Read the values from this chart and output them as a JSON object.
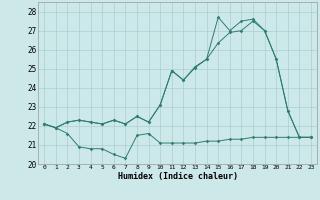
{
  "xlabel": "Humidex (Indice chaleur)",
  "xlim": [
    -0.5,
    23.5
  ],
  "ylim": [
    20,
    28.5
  ],
  "yticks": [
    20,
    21,
    22,
    23,
    24,
    25,
    26,
    27,
    28
  ],
  "xticks": [
    0,
    1,
    2,
    3,
    4,
    5,
    6,
    7,
    8,
    9,
    10,
    11,
    12,
    13,
    14,
    15,
    16,
    17,
    18,
    19,
    20,
    21,
    22,
    23
  ],
  "background_color": "#cde8e8",
  "grid_color": "#aacfcf",
  "line_color": "#2e7d6e",
  "line1_y": [
    22.1,
    21.9,
    21.6,
    20.9,
    20.8,
    20.8,
    20.5,
    20.3,
    21.5,
    21.6,
    21.1,
    21.1,
    21.1,
    21.1,
    21.2,
    21.2,
    21.3,
    21.3,
    21.4,
    21.4,
    21.4,
    21.4,
    21.4,
    21.4
  ],
  "line2_y": [
    22.1,
    21.9,
    22.2,
    22.3,
    22.2,
    22.1,
    22.3,
    22.1,
    22.5,
    22.2,
    23.1,
    24.9,
    24.4,
    25.05,
    25.5,
    26.35,
    26.9,
    27.0,
    27.5,
    27.0,
    25.5,
    22.8,
    21.4,
    21.4
  ],
  "line3_y": [
    22.1,
    21.9,
    22.2,
    22.3,
    22.2,
    22.1,
    22.3,
    22.1,
    22.5,
    22.2,
    23.1,
    24.9,
    24.4,
    25.1,
    25.5,
    27.7,
    27.0,
    27.5,
    27.6,
    27.0,
    25.5,
    22.8,
    21.4,
    21.4
  ]
}
